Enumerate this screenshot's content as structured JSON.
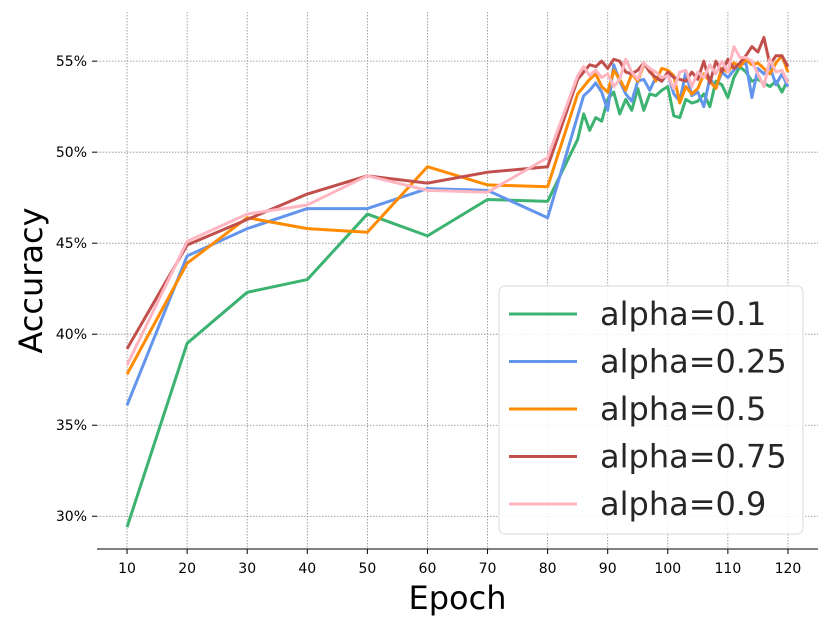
{
  "chart_data": {
    "type": "line",
    "xlabel": "Epoch",
    "ylabel": "Accuracy",
    "xlim": [
      5,
      125
    ],
    "ylim": [
      28.2,
      57.7
    ],
    "xticks": [
      10,
      20,
      30,
      40,
      50,
      60,
      70,
      80,
      90,
      100,
      110,
      120
    ],
    "xtick_labels": [
      "10",
      "20",
      "30",
      "40",
      "50",
      "60",
      "70",
      "80",
      "90",
      "100",
      "110",
      "120"
    ],
    "yticks": [
      30,
      35,
      40,
      45,
      50,
      55
    ],
    "ytick_labels": [
      "30%",
      "35%",
      "40%",
      "45%",
      "50%",
      "55%"
    ],
    "grid": true,
    "legend_position": "lower-right",
    "series": [
      {
        "name": "alpha=0.1",
        "color": "#3cb371",
        "x": [
          10,
          20,
          30,
          40,
          50,
          60,
          70,
          80,
          85,
          86,
          87,
          88,
          89,
          90,
          91,
          92,
          93,
          94,
          95,
          96,
          97,
          98,
          99,
          100,
          101,
          102,
          103,
          104,
          105,
          106,
          107,
          108,
          109,
          110,
          111,
          112,
          113,
          114,
          115,
          116,
          117,
          118,
          119,
          120
        ],
        "y": [
          29.4,
          39.5,
          42.3,
          43.0,
          46.6,
          45.4,
          47.4,
          47.3,
          50.7,
          52.1,
          51.2,
          51.9,
          51.7,
          52.9,
          53.3,
          52.1,
          52.9,
          52.3,
          53.5,
          52.3,
          53.2,
          53.1,
          53.4,
          53.6,
          52.0,
          51.9,
          52.9,
          52.7,
          52.8,
          53.2,
          52.5,
          53.9,
          53.7,
          53.0,
          54.1,
          54.7,
          54.4,
          53.9,
          54.0,
          53.8,
          53.6,
          53.9,
          53.3,
          54.0
        ]
      },
      {
        "name": "alpha=0.25",
        "color": "#6495ed",
        "x": [
          10,
          20,
          30,
          40,
          50,
          60,
          70,
          80,
          85,
          86,
          87,
          88,
          89,
          90,
          91,
          92,
          93,
          94,
          95,
          96,
          97,
          98,
          99,
          100,
          101,
          102,
          103,
          104,
          105,
          106,
          107,
          108,
          109,
          110,
          111,
          112,
          113,
          114,
          115,
          116,
          117,
          118,
          119,
          120
        ],
        "y": [
          36.1,
          44.3,
          45.8,
          46.9,
          46.9,
          48.0,
          47.9,
          46.4,
          52.0,
          53.1,
          53.4,
          53.8,
          53.3,
          52.3,
          54.8,
          53.9,
          53.2,
          52.8,
          53.9,
          54.0,
          53.4,
          54.1,
          53.9,
          54.3,
          53.2,
          52.8,
          54.4,
          53.1,
          53.3,
          52.5,
          54.1,
          53.5,
          54.4,
          54.1,
          54.5,
          54.8,
          54.9,
          53.0,
          54.6,
          54.3,
          54.7,
          53.7,
          54.3,
          53.6
        ]
      },
      {
        "name": "alpha=0.5",
        "color": "#ff8c00",
        "x": [
          10,
          20,
          30,
          40,
          50,
          60,
          70,
          80,
          85,
          86,
          87,
          88,
          89,
          90,
          91,
          92,
          93,
          94,
          95,
          96,
          97,
          98,
          99,
          100,
          101,
          102,
          103,
          104,
          105,
          106,
          107,
          108,
          109,
          110,
          111,
          112,
          113,
          114,
          115,
          116,
          117,
          118,
          119,
          120
        ],
        "y": [
          37.8,
          43.9,
          46.4,
          45.8,
          45.6,
          49.2,
          48.2,
          48.1,
          53.2,
          53.6,
          54.0,
          54.3,
          53.6,
          53.3,
          54.5,
          54.0,
          53.4,
          54.3,
          53.9,
          54.8,
          54.6,
          53.9,
          54.6,
          54.5,
          54.2,
          52.7,
          53.6,
          53.2,
          53.5,
          54.3,
          53.9,
          53.5,
          54.6,
          54.4,
          54.9,
          54.7,
          55.1,
          54.8,
          54.9,
          54.6,
          54.3,
          54.9,
          55.3,
          54.4
        ]
      },
      {
        "name": "alpha=0.75",
        "color": "#c1504d",
        "x": [
          10,
          20,
          30,
          40,
          50,
          60,
          70,
          80,
          85,
          86,
          87,
          88,
          89,
          90,
          91,
          92,
          93,
          94,
          95,
          96,
          97,
          98,
          99,
          100,
          101,
          102,
          103,
          104,
          105,
          106,
          107,
          108,
          109,
          110,
          111,
          112,
          113,
          114,
          115,
          116,
          117,
          118,
          119,
          120
        ],
        "y": [
          39.2,
          44.9,
          46.3,
          47.7,
          48.7,
          48.3,
          48.9,
          49.2,
          54.0,
          54.4,
          54.8,
          54.7,
          55.0,
          54.6,
          55.1,
          55.0,
          54.4,
          54.3,
          54.5,
          54.9,
          54.4,
          54.1,
          53.9,
          54.4,
          54.1,
          54.0,
          53.9,
          54.4,
          54.0,
          55.0,
          53.8,
          55.0,
          54.4,
          55.1,
          54.6,
          54.9,
          55.3,
          55.8,
          55.5,
          56.3,
          54.8,
          55.3,
          55.3,
          54.7
        ]
      },
      {
        "name": "alpha=0.9",
        "color": "#ffb6c1",
        "x": [
          10,
          20,
          30,
          40,
          50,
          60,
          70,
          80,
          85,
          86,
          87,
          88,
          89,
          90,
          91,
          92,
          93,
          94,
          95,
          96,
          97,
          98,
          99,
          100,
          101,
          102,
          103,
          104,
          105,
          106,
          107,
          108,
          109,
          110,
          111,
          112,
          113,
          114,
          115,
          116,
          117,
          118,
          119,
          120
        ],
        "y": [
          38.3,
          45.1,
          46.6,
          47.1,
          48.7,
          47.9,
          47.8,
          49.7,
          54.2,
          54.7,
          54.2,
          54.5,
          54.1,
          54.3,
          53.6,
          54.0,
          55.1,
          54.4,
          54.0,
          54.9,
          54.6,
          54.4,
          54.1,
          54.2,
          53.5,
          54.4,
          54.5,
          53.6,
          54.4,
          54.1,
          54.8,
          54.3,
          55.0,
          54.4,
          55.8,
          55.2,
          55.2,
          55.0,
          54.3,
          53.6,
          55.1,
          54.4,
          54.5,
          53.8
        ]
      }
    ]
  }
}
